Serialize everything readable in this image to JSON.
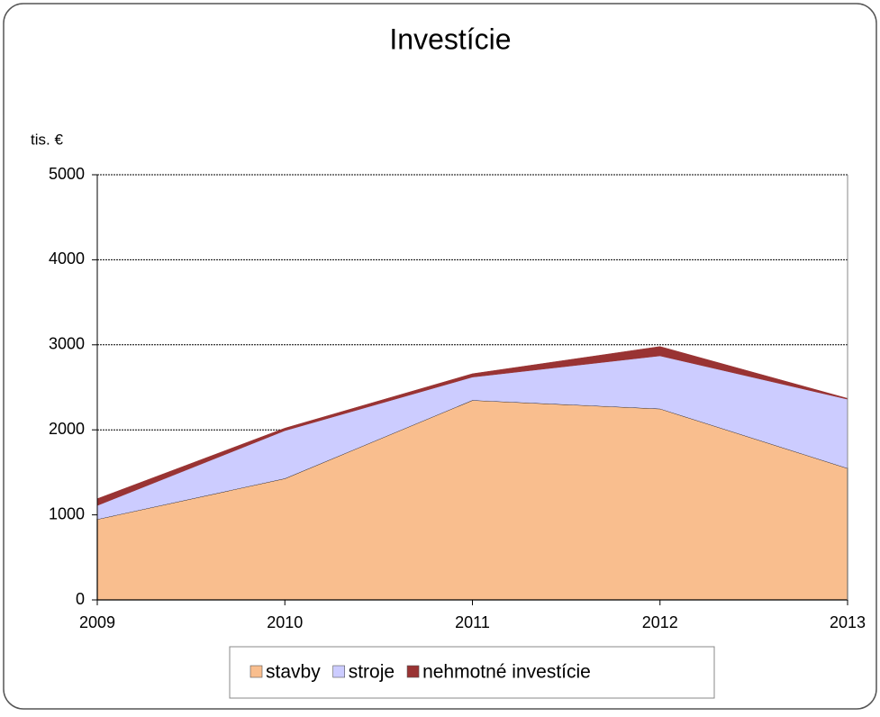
{
  "chart_data": {
    "type": "stacked_area",
    "title": "Investície",
    "y_label": "tis. €",
    "categories": [
      "2009",
      "2010",
      "2011",
      "2012",
      "2013"
    ],
    "series": [
      {
        "name": "stavby",
        "color": "#f9be8e",
        "values": [
          950,
          1430,
          2350,
          2250,
          1550
        ]
      },
      {
        "name": "stroje",
        "color": "#ccccff",
        "values": [
          160,
          560,
          270,
          620,
          810
        ]
      },
      {
        "name": "nehmotné investície",
        "color": "#993333",
        "values": [
          80,
          30,
          40,
          110,
          10
        ]
      }
    ],
    "ylim": [
      0,
      5000
    ],
    "yticks": [
      0,
      1000,
      2000,
      3000,
      4000,
      5000
    ],
    "grid": true,
    "legend": "bottom"
  }
}
